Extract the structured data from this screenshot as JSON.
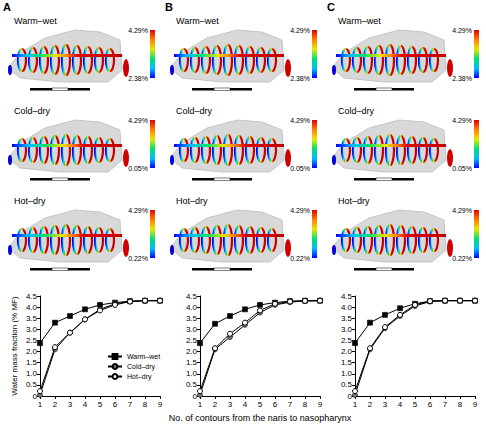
{
  "chart_data": [
    {
      "type": "line",
      "title": "A",
      "ylabel": "Water mass fraction (% MF)",
      "x": [
        1,
        2,
        3,
        4,
        5,
        6,
        7,
        8,
        9
      ],
      "xlim": [
        1,
        9
      ],
      "xticks": [
        1,
        2,
        3,
        4,
        5,
        6,
        7,
        8,
        9
      ],
      "ylim": [
        0,
        4.5
      ],
      "yticks": [
        {
          "value": 0,
          "label": "0"
        },
        0.5,
        {
          "value": 1,
          "label": "1.0"
        },
        1.5,
        {
          "value": 2,
          "label": "2.0"
        },
        2.5,
        {
          "value": 3,
          "label": "3.0"
        },
        3.5,
        {
          "value": 4,
          "label": "4.0"
        },
        4.5
      ],
      "grid": false,
      "legend": "lower right",
      "series": [
        {
          "name": "Warm–wet",
          "color": "#000000",
          "marker": "square",
          "values": [
            2.38,
            3.3,
            3.6,
            3.9,
            4.1,
            4.2,
            4.27,
            4.29,
            4.29
          ]
        },
        {
          "name": "Cold–dry",
          "color": "#777777",
          "marker": "circle",
          "values": [
            0.05,
            2.1,
            2.85,
            3.45,
            3.9,
            4.15,
            4.25,
            4.29,
            4.29
          ]
        },
        {
          "name": "Hot–dry",
          "color": "#000000",
          "marker": "open_circle",
          "values": [
            0.22,
            2.2,
            2.85,
            3.45,
            3.85,
            4.1,
            4.25,
            4.29,
            4.29
          ]
        }
      ]
    },
    {
      "type": "line",
      "title": "B",
      "xlabel": "No. of contours from the naris to nasopharynx",
      "x": [
        1,
        2,
        3,
        4,
        5,
        6,
        7,
        8,
        9
      ],
      "xlim": [
        1,
        9
      ],
      "xticks": [
        1,
        2,
        3,
        4,
        5,
        6,
        7,
        8,
        9
      ],
      "ylim": [
        0,
        4.5
      ],
      "yticks": [
        {
          "value": 0,
          "label": "0"
        },
        0.5,
        {
          "value": 1,
          "label": "1.0"
        },
        1.5,
        {
          "value": 2,
          "label": "2.0"
        },
        2.5,
        {
          "value": 3,
          "label": "3.0"
        },
        3.5,
        {
          "value": 4,
          "label": "4.0"
        },
        4.5
      ],
      "grid": false,
      "series": [
        {
          "name": "Warm–wet",
          "color": "#000000",
          "marker": "square",
          "values": [
            2.38,
            3.25,
            3.6,
            3.9,
            4.1,
            4.2,
            4.27,
            4.29,
            4.29
          ]
        },
        {
          "name": "Cold–dry",
          "color": "#777777",
          "marker": "circle",
          "values": [
            0.05,
            2.1,
            2.65,
            3.2,
            3.75,
            4.1,
            4.22,
            4.28,
            4.29
          ]
        },
        {
          "name": "Hot–dry",
          "color": "#000000",
          "marker": "open_circle",
          "values": [
            0.22,
            2.15,
            2.8,
            3.3,
            3.85,
            4.15,
            4.25,
            4.28,
            4.29
          ]
        }
      ]
    },
    {
      "type": "line",
      "title": "C",
      "x": [
        1,
        2,
        3,
        4,
        5,
        6,
        7,
        8,
        9
      ],
      "xlim": [
        1,
        9
      ],
      "xticks": [
        1,
        2,
        3,
        4,
        5,
        6,
        7,
        8,
        9
      ],
      "ylim": [
        0,
        4.5
      ],
      "yticks": [
        {
          "value": 0,
          "label": "0"
        },
        0.5,
        {
          "value": 1,
          "label": "1.0"
        },
        1.5,
        {
          "value": 2,
          "label": "2.0"
        },
        2.5,
        {
          "value": 3,
          "label": "3.0"
        },
        3.5,
        {
          "value": 4,
          "label": "4.0"
        },
        4.5
      ],
      "grid": false,
      "series": [
        {
          "name": "Warm–wet",
          "color": "#000000",
          "marker": "square",
          "values": [
            2.38,
            3.3,
            3.65,
            3.95,
            4.15,
            4.27,
            4.29,
            4.29,
            4.29
          ]
        },
        {
          "name": "Cold–dry",
          "color": "#777777",
          "marker": "circle",
          "values": [
            0.05,
            2.1,
            3.05,
            3.6,
            4.05,
            4.25,
            4.29,
            4.29,
            4.29
          ]
        },
        {
          "name": "Hot–dry",
          "color": "#000000",
          "marker": "open_circle",
          "values": [
            0.22,
            2.15,
            3.1,
            3.65,
            4.1,
            4.27,
            4.29,
            4.29,
            4.29
          ]
        }
      ]
    }
  ],
  "renderings": {
    "conditions": [
      {
        "name": "Warm–wet",
        "colorbar": {
          "range": [
            2.38,
            4.29
          ],
          "ticks": [
            {
              "value": 2.38,
              "label": "2.38%"
            },
            {
              "value": 4.29,
              "label": "4.29%"
            }
          ]
        }
      },
      {
        "name": "Cold–dry",
        "colorbar": {
          "range": [
            0.05,
            4.29
          ],
          "ticks": [
            {
              "value": 0.05,
              "label": "0.05%"
            },
            {
              "value": 4.29,
              "label": "4.29%"
            }
          ]
        }
      },
      {
        "name": "Hot–dry",
        "colorbar": {
          "range": [
            0.22,
            4.29
          ],
          "ticks": [
            {
              "value": 0.22,
              "label": "0.22%"
            },
            {
              "value": 4.29,
              "label": "4.29%"
            }
          ]
        }
      }
    ]
  }
}
